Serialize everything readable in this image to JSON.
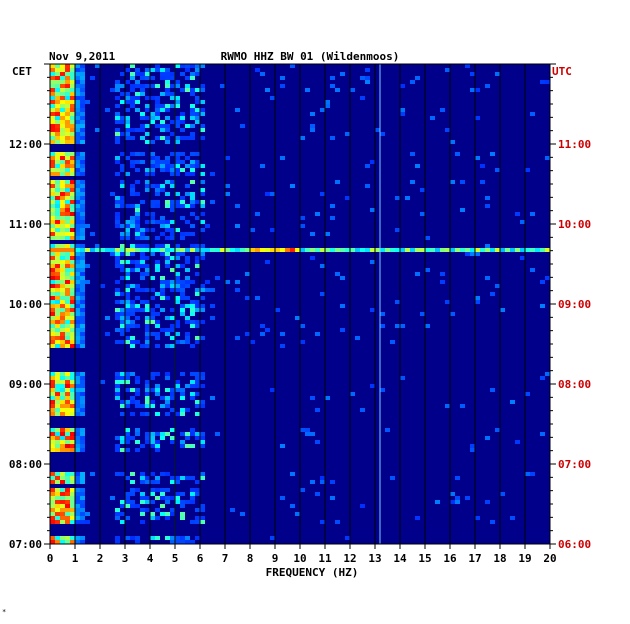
{
  "header": {
    "date": "Nov 9,2011",
    "station": "RWMO HHZ BW 01 (Wildenmoos)",
    "left_tz": "CET",
    "right_tz": "UTC"
  },
  "footer_mark": "*",
  "colors": {
    "background": "#00008b",
    "utc_labels": "#cc0000",
    "grid": "#000000"
  },
  "chart_data": {
    "type": "heatmap",
    "title": "RWMO HHZ BW 01 (Wildenmoos)",
    "xlabel": "FREQUENCY (HZ)",
    "xlim": [
      0,
      20
    ],
    "x_ticks": [
      0,
      1,
      2,
      3,
      4,
      5,
      6,
      7,
      8,
      9,
      10,
      11,
      12,
      13,
      14,
      15,
      16,
      17,
      18,
      19,
      20
    ],
    "x_tick_labels": [
      "0",
      "1",
      "2",
      "3",
      "4",
      "5",
      "6",
      "7",
      "8",
      "9",
      "10",
      "11",
      "12",
      "13",
      "14",
      "15",
      "16",
      "17",
      "18",
      "19",
      "20"
    ],
    "ylim_hours": [
      7,
      13
    ],
    "y_left_ticks": [
      12,
      11,
      10,
      9,
      8,
      7
    ],
    "y_left_labels": [
      "12:00",
      "11:00",
      "10:00",
      "09:00",
      "08:00",
      "07:00"
    ],
    "y_right_labels": [
      "11:00",
      "10:00",
      "09:00",
      "08:00",
      "07:00",
      "06:00"
    ],
    "gaps_hours": [
      [
        11.9,
        12.0
      ],
      [
        11.55,
        11.6
      ],
      [
        10.75,
        10.8
      ],
      [
        9.15,
        9.45
      ],
      [
        8.45,
        8.6
      ],
      [
        7.9,
        8.15
      ],
      [
        7.7,
        7.75
      ],
      [
        7.1,
        7.25
      ]
    ],
    "strong_band_hours": 10.68,
    "features": [
      {
        "name": "microseism band",
        "f_hz": [
          0.1,
          0.8
        ]
      },
      {
        "name": "5 Hz line",
        "f_hz": 5.0
      },
      {
        "name": "13.2 Hz line",
        "f_hz": 13.2
      }
    ]
  }
}
